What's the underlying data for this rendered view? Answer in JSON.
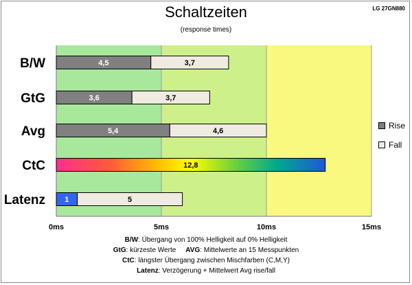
{
  "header": {
    "title": "Schaltzeiten",
    "subtitle": "(response times)",
    "model": "LG 27GN880"
  },
  "chart_data": {
    "type": "bar",
    "orientation": "horizontal",
    "stacked": true,
    "categories": [
      "B/W",
      "GtG",
      "Avg",
      "CtC",
      "Latenz"
    ],
    "series": [
      {
        "name": "Rise",
        "values": [
          4.5,
          3.6,
          5.4,
          12.8,
          1
        ],
        "color": "#808080",
        "value_labels": [
          "4,5",
          "3,6",
          "5,4",
          "12,8",
          "1"
        ]
      },
      {
        "name": "Fall",
        "values": [
          3.7,
          3.7,
          4.6,
          null,
          5
        ],
        "color": "#efebe1",
        "value_labels": [
          "3,7",
          "3,7",
          "4,6",
          "",
          "5"
        ]
      }
    ],
    "special_colors": {
      "CtC": "rainbow",
      "Latenz_rise": "#3366ee"
    },
    "xlim": [
      0,
      15
    ],
    "ticks": [
      0,
      5,
      10,
      15
    ],
    "tick_labels": [
      "0ms",
      "5ms",
      "10ms",
      "15ms"
    ],
    "background_zones": [
      {
        "from": 0,
        "to": 5,
        "color": "#a8e89c"
      },
      {
        "from": 5,
        "to": 10,
        "color": "#cdf08a"
      },
      {
        "from": 10,
        "to": 15,
        "color": "#f8f97e"
      }
    ],
    "legend": {
      "position": "right",
      "entries": [
        "Rise",
        "Fall"
      ]
    }
  },
  "notes": {
    "line1_key": "B/W",
    "line1_text": ":  Übergang von 100% Helligkeit auf 0% Helligkeit",
    "line2a_key": "GtG",
    "line2a_text": ": kürzeste  Werte",
    "line2b_key": "AVG",
    "line2b_text": ": Mittelwerte  an 15 Messpunkten",
    "line3_key": "CtC",
    "line3_text": ": längster Übergang  zwischen Mischfarben (C,M,Y)",
    "line4_key": "Latenz",
    "line4_text": ": Verzögerung  + Mittelwert Avg rise/fall"
  }
}
